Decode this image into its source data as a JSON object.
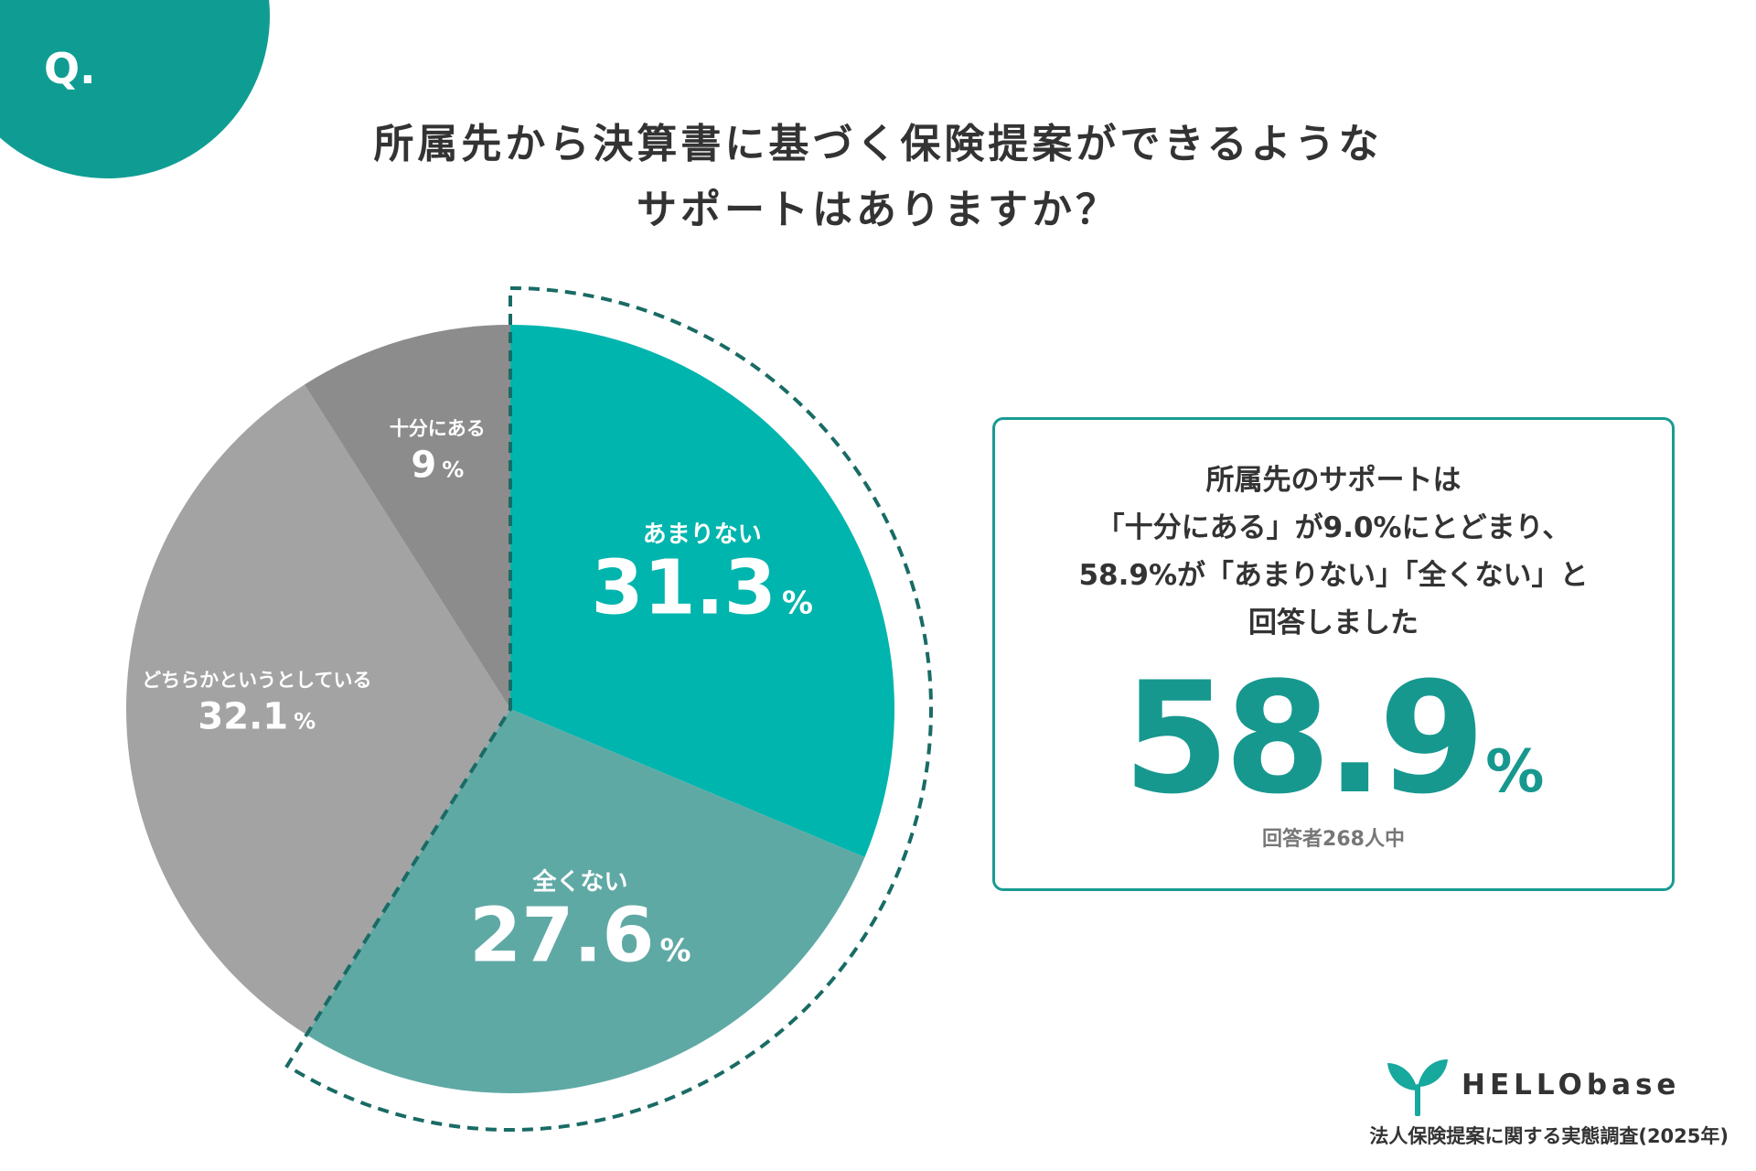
{
  "badge": {
    "label": "Q."
  },
  "title": {
    "line1": "所属先から決算書に基づく保険提案ができるような",
    "line2": "サポートはありますか？"
  },
  "chart_data": {
    "type": "pie",
    "unit": "%",
    "start": "12 o'clock",
    "direction": "clockwise",
    "slices": [
      {
        "label": "あまりない",
        "value": 31.3,
        "display": "31.3",
        "color": "#00b5ad"
      },
      {
        "label": "全くない",
        "value": 27.6,
        "display": "27.6",
        "color": "#5fa9a5"
      },
      {
        "label": "どちらかというとしている",
        "value": 32.1,
        "display": "32.1",
        "color": "#a3a3a3"
      },
      {
        "label": "十分にある",
        "value": 9.0,
        "display": "9",
        "color": "#8c8c8c"
      }
    ],
    "highlight": {
      "slices": [
        "あまりない",
        "全くない"
      ],
      "style": "dashed outline",
      "color": "#196b65"
    }
  },
  "callout": {
    "line1": "所属先のサポートは",
    "line2": "「十分にある」が9.0%にとどまり、",
    "line3": "58.9%が「あまりない」「全くない」と",
    "line4": "回答しました",
    "big_value": "58.9",
    "big_unit": "%",
    "respondents": "回答者268人中"
  },
  "brand": {
    "name": "HELLObase",
    "survey": "法人保険提案に関する実態調査(2025年)",
    "icon": "sprout-icon"
  }
}
